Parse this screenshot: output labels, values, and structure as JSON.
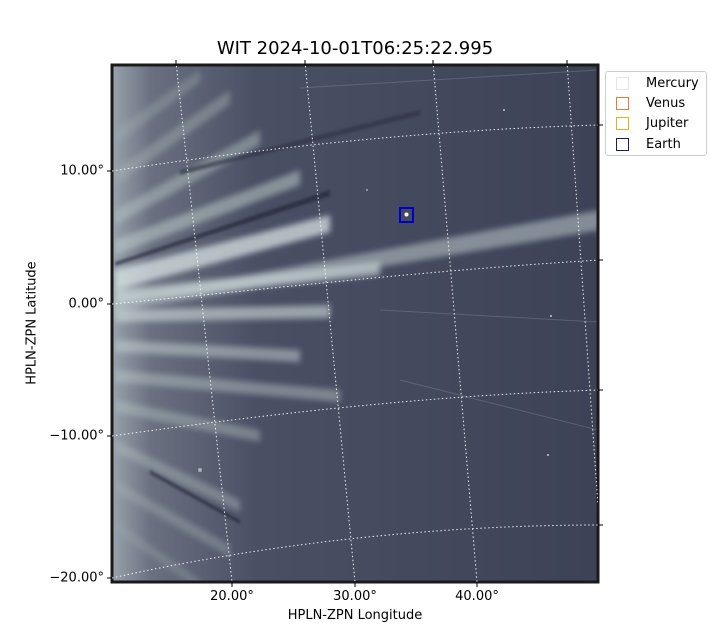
{
  "title": "WIT 2024-10-01T06:25:22.995",
  "axes": {
    "xlabel": "HPLN-ZPN Longitude",
    "ylabel": "HPLN-ZPN Latitude",
    "xticks": [
      "20.00°",
      "30.00°",
      "40.00°"
    ],
    "yticks": [
      "10.00°",
      "0.00°",
      "−10.00°",
      "−20.00°"
    ]
  },
  "legend": {
    "items": [
      {
        "label": "Mercury",
        "color": "#e6e6e6"
      },
      {
        "label": "Venus",
        "color": "#e07b39"
      },
      {
        "label": "Jupiter",
        "color": "#e0b020"
      },
      {
        "label": "Earth",
        "color": "#1a1a6e"
      }
    ]
  },
  "marker": {
    "name": "Earth",
    "color": "#0000cc"
  }
}
